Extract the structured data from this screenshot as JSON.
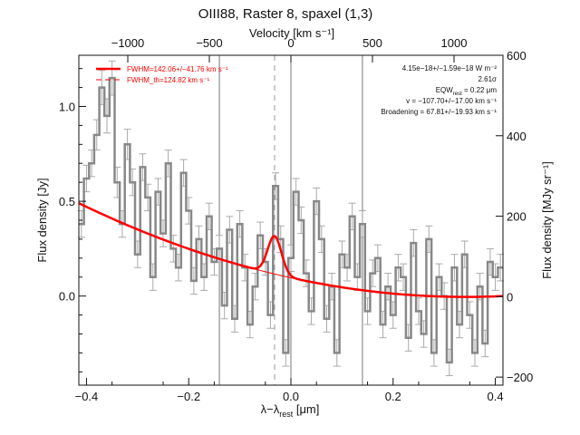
{
  "title": "OIII88, Raster 8, spaxel (1,3)",
  "chart_data": {
    "type": "line",
    "title": "OIII88, Raster 8, spaxel (1,3)",
    "xlabel": "λ−λrest [μm]",
    "xlabel_main": "λ−λ",
    "xlabel_sub": "rest",
    "xlabel_unit": " [μm]",
    "ylabel": "Flux density [Jy]",
    "top_xlabel": "Velocity [km s⁻¹]",
    "right_ylabel": "Flux density [MJy sr⁻¹]",
    "xlim": [
      -0.415,
      0.415
    ],
    "ylim": [
      -0.47,
      1.27
    ],
    "right_ylim": [
      -220,
      600
    ],
    "top_xlim": [
      -1300,
      1300
    ],
    "x_ticks": [
      -0.4,
      -0.2,
      0.0,
      0.2,
      0.4
    ],
    "x_tick_labels": [
      "−0.4",
      "−0.2",
      "0.0",
      "0.2",
      "0.4"
    ],
    "y_ticks": [
      0.0,
      0.5,
      1.0
    ],
    "y_tick_labels": [
      "0.0",
      "0.5",
      "1.0"
    ],
    "top_ticks": [
      -1000,
      -500,
      0,
      500,
      1000
    ],
    "top_tick_labels": [
      "−1000",
      "−500",
      "0",
      "500",
      "1000"
    ],
    "right_ticks": [
      -200,
      0,
      200,
      400,
      600
    ],
    "right_tick_labels": [
      "−200",
      "0",
      "200",
      "400",
      "600"
    ],
    "vertical_lines": [
      -0.14,
      0.0,
      0.14
    ],
    "line_center": -0.032,
    "series": [
      {
        "name": "",
        "style": "step",
        "color": "#888888",
        "x": [
          -0.41,
          -0.4,
          -0.39,
          -0.38,
          -0.37,
          -0.36,
          -0.35,
          -0.34,
          -0.33,
          -0.32,
          -0.31,
          -0.3,
          -0.29,
          -0.28,
          -0.27,
          -0.26,
          -0.25,
          -0.24,
          -0.23,
          -0.22,
          -0.21,
          -0.2,
          -0.19,
          -0.18,
          -0.17,
          -0.16,
          -0.15,
          -0.14,
          -0.13,
          -0.12,
          -0.11,
          -0.1,
          -0.09,
          -0.08,
          -0.07,
          -0.06,
          -0.05,
          -0.04,
          -0.03,
          -0.02,
          -0.01,
          0.0,
          0.01,
          0.02,
          0.03,
          0.04,
          0.05,
          0.06,
          0.07,
          0.08,
          0.09,
          0.1,
          0.11,
          0.12,
          0.13,
          0.14,
          0.15,
          0.16,
          0.17,
          0.18,
          0.19,
          0.2,
          0.21,
          0.22,
          0.23,
          0.24,
          0.25,
          0.26,
          0.27,
          0.28,
          0.29,
          0.3,
          0.31,
          0.32,
          0.33,
          0.34,
          0.35,
          0.36,
          0.37,
          0.38,
          0.39,
          0.4,
          0.41
        ],
        "values": [
          0.38,
          0.62,
          0.7,
          0.85,
          1.1,
          0.95,
          1.15,
          0.6,
          0.38,
          0.8,
          0.6,
          0.22,
          0.68,
          0.52,
          0.1,
          0.55,
          0.33,
          0.7,
          0.25,
          0.15,
          0.65,
          0.45,
          0.08,
          0.3,
          0.1,
          0.42,
          0.18,
          0.25,
          -0.05,
          0.35,
          -0.12,
          0.38,
          0.15,
          -0.15,
          0.05,
          0.32,
          0.18,
          -0.1,
          0.58,
          0.3,
          -0.3,
          0.2,
          0.55,
          0.4,
          0.12,
          -0.08,
          0.5,
          0.3,
          -0.12,
          0.05,
          -0.3,
          0.22,
          0.15,
          0.42,
          0.1,
          0.38,
          -0.08,
          0.12,
          0.2,
          -0.15,
          0.05,
          -0.1,
          0.15,
          0.1,
          -0.22,
          0.28,
          -0.08,
          -0.2,
          0.3,
          -0.3,
          0.1,
          0.0,
          -0.35,
          0.15,
          -0.15,
          0.22,
          -0.1,
          -0.3,
          0.05,
          -0.25,
          0.18,
          0.1,
          0.15
        ],
        "errors": [
          0.07,
          0.07,
          0.07,
          0.08,
          0.09,
          0.09,
          0.09,
          0.08,
          0.07,
          0.08,
          0.07,
          0.07,
          0.07,
          0.07,
          0.07,
          0.07,
          0.07,
          0.07,
          0.07,
          0.07,
          0.07,
          0.07,
          0.07,
          0.07,
          0.07,
          0.07,
          0.07,
          0.07,
          0.07,
          0.07,
          0.07,
          0.07,
          0.07,
          0.07,
          0.07,
          0.07,
          0.07,
          0.07,
          0.07,
          0.07,
          0.07,
          0.07,
          0.07,
          0.07,
          0.07,
          0.07,
          0.07,
          0.07,
          0.07,
          0.07,
          0.07,
          0.07,
          0.07,
          0.07,
          0.07,
          0.07,
          0.07,
          0.07,
          0.07,
          0.07,
          0.07,
          0.07,
          0.07,
          0.07,
          0.07,
          0.07,
          0.07,
          0.07,
          0.07,
          0.07,
          0.07,
          0.07,
          0.07,
          0.07,
          0.07,
          0.07,
          0.07,
          0.07,
          0.07,
          0.07,
          0.07,
          0.07,
          0.07
        ]
      },
      {
        "name": "FWHM=142.06+/−41.76 km s⁻¹",
        "style": "line",
        "color": "#ff0000",
        "continuum": [
          -0.415,
          0.49,
          0.27,
          0.0,
          0.415,
          0.0
        ],
        "gaussian": {
          "center": -0.032,
          "amplitude": 0.2,
          "sigma": 0.0135
        }
      },
      {
        "name": "FWHM_th=124.82 km s⁻¹",
        "style": "dashed",
        "color": "#ff0000"
      }
    ],
    "annotations": [
      "4.15e−18+/−1.59e−18 W m⁻²",
      "2.61σ",
      "EQW",
      "rest",
      " = 0.22 μm",
      "v = −107.70+/−17.00 km s⁻¹",
      "Broadening = 67.81+/−19.93 km s⁻¹"
    ],
    "legend_position": "top-left",
    "grid": false
  }
}
